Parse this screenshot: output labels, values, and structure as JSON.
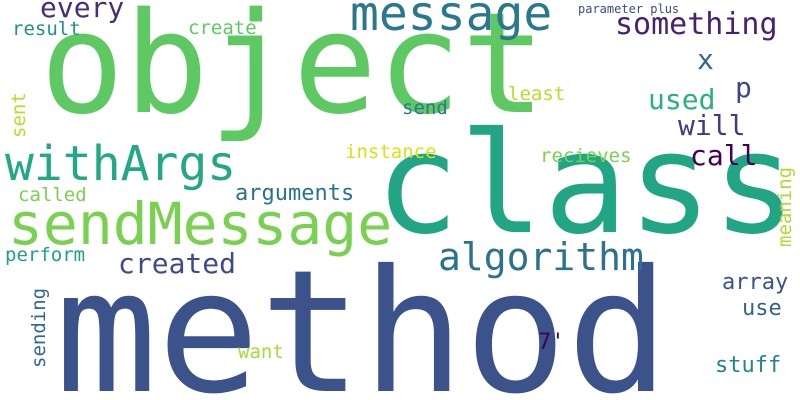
{
  "word_cloud": {
    "words": {
      "method": {
        "text": "method",
        "color": "#3b528b"
      },
      "object": {
        "text": "object",
        "color": "#5ec962"
      },
      "class": {
        "text": "class",
        "color": "#21a585"
      },
      "sendMessage": {
        "text": "sendMessage",
        "color": "#7ad151"
      },
      "withArgs": {
        "text": "withArgs",
        "color": "#22a884"
      },
      "message": {
        "text": "message",
        "color": "#2a788e"
      },
      "algorithm": {
        "text": "algorithm",
        "color": "#2c718e"
      },
      "something": {
        "text": "something",
        "color": "#482173"
      },
      "created": {
        "text": "created",
        "color": "#3e4a89"
      },
      "every": {
        "text": "every",
        "color": "#472c7a"
      },
      "used": {
        "text": "used",
        "color": "#2ab07f"
      },
      "will": {
        "text": "will",
        "color": "#443983"
      },
      "call": {
        "text": "call",
        "color": "#440154"
      },
      "p": {
        "text": "p",
        "color": "#3e4989"
      },
      "x": {
        "text": "x",
        "color": "#31688e"
      },
      "arguments": {
        "text": "arguments",
        "color": "#2c728e"
      },
      "array": {
        "text": "array",
        "color": "#3b528b"
      },
      "use": {
        "text": "use",
        "color": "#33638d"
      },
      "stuff": {
        "text": "stuff",
        "color": "#25838e"
      },
      "seven": {
        "text": "7'",
        "color": "#440154"
      },
      "result": {
        "text": "result",
        "color": "#21918c"
      },
      "create": {
        "text": "create",
        "color": "#5ec962"
      },
      "send": {
        "text": "send",
        "color": "#2a788e"
      },
      "least": {
        "text": "least",
        "color": "#b5de2b"
      },
      "instance": {
        "text": "instance",
        "color": "#d8e219"
      },
      "recieves": {
        "text": "recieves",
        "color": "#7ad151"
      },
      "called": {
        "text": "called",
        "color": "#7ad151"
      },
      "perform": {
        "text": "perform",
        "color": "#1fa088"
      },
      "want": {
        "text": "want",
        "color": "#a5db36"
      },
      "parameter": {
        "text": "parameter plus",
        "color": "#3e4a89"
      },
      "sent": {
        "text": "sent",
        "color": "#b5de2b"
      },
      "sending": {
        "text": "sending",
        "color": "#31688e"
      },
      "meaning": {
        "text": "meaning",
        "color": "#addc30"
      }
    }
  }
}
